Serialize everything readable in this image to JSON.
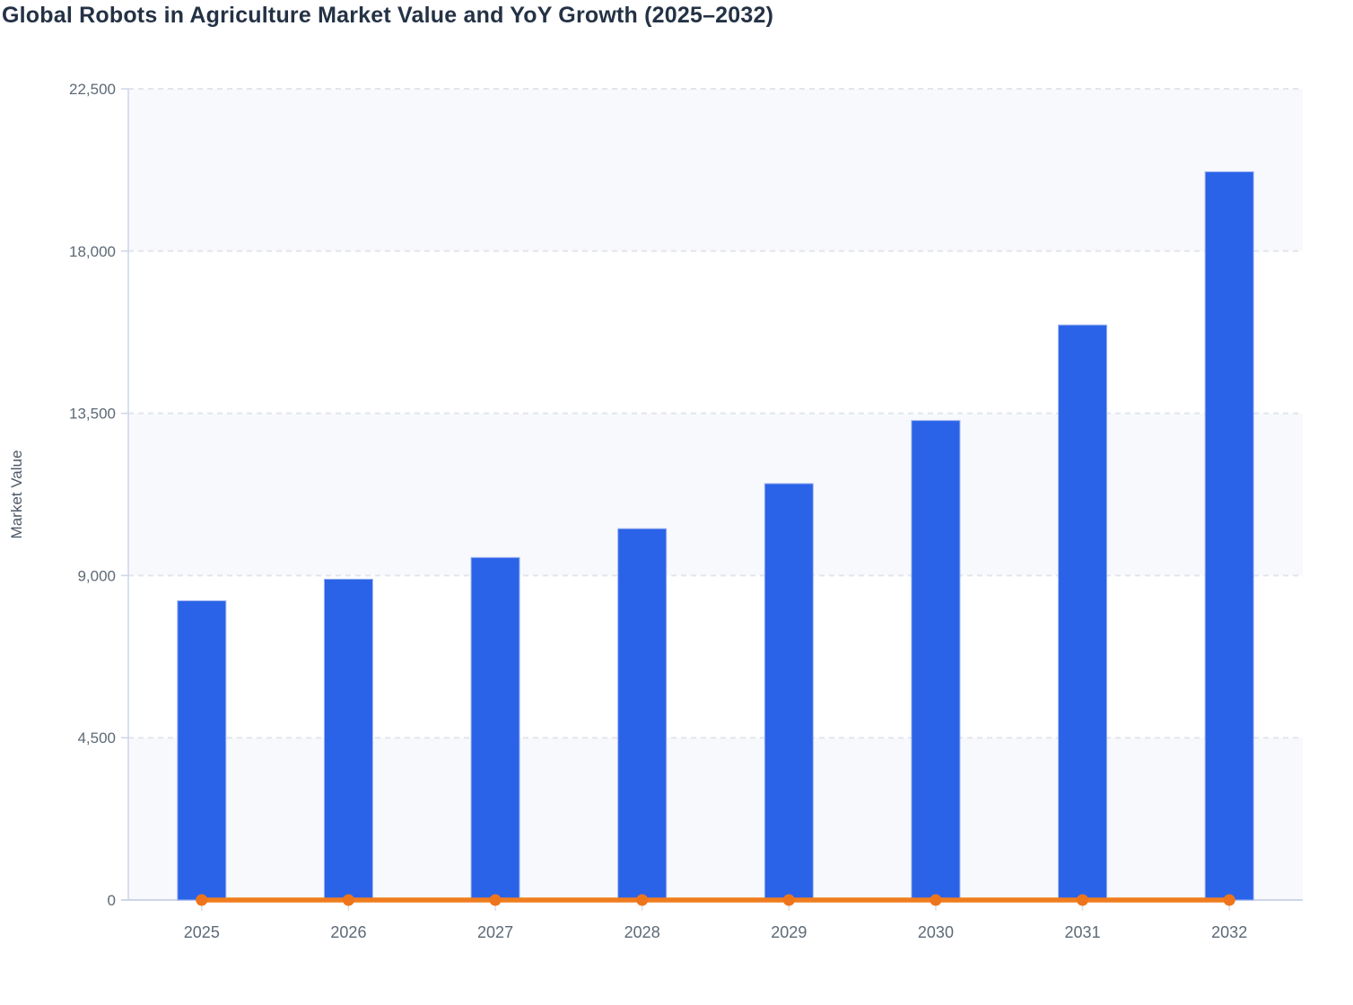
{
  "page": {
    "background": "#ffffff"
  },
  "chart_data": {
    "type": "bar",
    "title": "Global Robots in Agriculture Market Value and YoY Growth (2025–2032)",
    "ylabel": "Market Value",
    "xlabel": "",
    "categories": [
      "2025",
      "2026",
      "2027",
      "2028",
      "2029",
      "2030",
      "2031",
      "2032"
    ],
    "series": [
      {
        "name": "Market Value",
        "type": "bar",
        "values": [
          8300,
          8900,
          9500,
          10300,
          11550,
          13300,
          15950,
          20200
        ]
      },
      {
        "name": "YoY Growth",
        "type": "line",
        "values": [
          0,
          0,
          0,
          0,
          0,
          0,
          0,
          0
        ],
        "note": "orange line renders flat along the zero baseline with a round marker at each year"
      }
    ],
    "ylim": [
      0,
      22500
    ],
    "yticks": [
      0,
      4500,
      9000,
      13500,
      18000,
      22500
    ],
    "ytick_labels": [
      "0",
      "4,500",
      "9,000",
      "13,500",
      "18,000",
      "22,500"
    ],
    "grid": "dashed horizontal gridlines",
    "legend": "none",
    "plot_bands": "alternating shaded horizontal bands between gridlines",
    "colors": {
      "bar": "#2a63e8",
      "bar_edge": "#9eb4f2",
      "line": "#f07d1e",
      "marker": "#ee751c",
      "band": "#f8f9fc",
      "band_alt": "#ffffff",
      "grid": "#e3e5eb",
      "axis": "#ccd6e8",
      "tick": "#d9e0ee",
      "title": "#243245",
      "tick_label": "#5d6976"
    }
  }
}
